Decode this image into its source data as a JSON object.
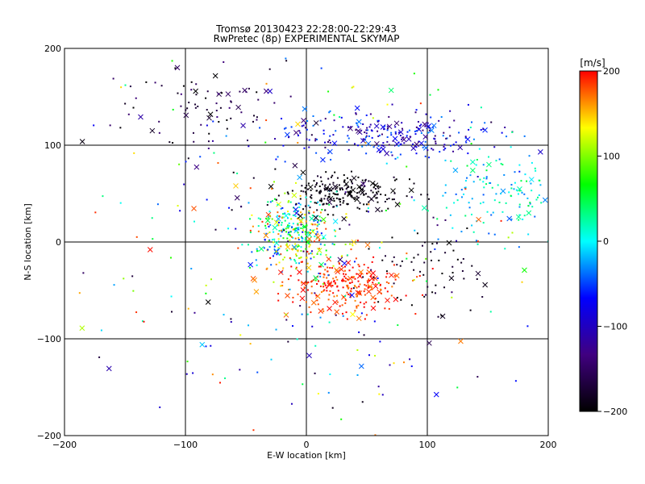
{
  "chart_data": {
    "type": "scatter",
    "title": "Tromsø 20130423 22:28:00-22:29:43",
    "subtitle": "RwPretec (8p) EXPERIMENTAL SKYMAP",
    "xlabel": "E-W location [km]",
    "ylabel": "N-S location [km]",
    "xlim": [
      -200,
      200
    ],
    "ylim": [
      -200,
      200
    ],
    "xticks": [
      -200,
      -100,
      0,
      100,
      200
    ],
    "yticks": [
      -200,
      -100,
      0,
      100,
      200
    ],
    "xtick_labels": [
      "−200",
      "−100",
      "0",
      "100",
      "200"
    ],
    "ytick_labels": [
      "−200",
      "−100",
      "0",
      "100",
      "200"
    ],
    "grid": true,
    "colorbar": {
      "label": "[m/s]",
      "min": -200,
      "max": 200,
      "ticks": [
        200,
        100,
        0,
        -100,
        -200
      ],
      "tick_labels": [
        "200",
        "100",
        "0",
        "−100",
        "−200"
      ],
      "colors": [
        "#ff0000",
        "#ffff00",
        "#00ff00",
        "#00ffff",
        "#0000ff",
        "#400080",
        "#000000"
      ]
    },
    "clusters": [
      {
        "cx": -10,
        "cy": 10,
        "sx": 18,
        "sy": 18,
        "n": 300,
        "v": 60,
        "dv": 130
      },
      {
        "cx": 30,
        "cy": -45,
        "sx": 25,
        "sy": 15,
        "n": 260,
        "v": 190,
        "dv": 25
      },
      {
        "cx": 30,
        "cy": 50,
        "sx": 25,
        "sy": 10,
        "n": 220,
        "v": -195,
        "dv": 20
      },
      {
        "cx": 60,
        "cy": 110,
        "sx": 45,
        "sy": 12,
        "n": 240,
        "v": -90,
        "dv": 60
      },
      {
        "cx": 160,
        "cy": 50,
        "sx": 25,
        "sy": 25,
        "n": 140,
        "v": 5,
        "dv": 50
      },
      {
        "cx": 100,
        "cy": -30,
        "sx": 25,
        "sy": 20,
        "n": 60,
        "v": -190,
        "dv": 20
      },
      {
        "cx": -80,
        "cy": 140,
        "sx": 35,
        "sy": 20,
        "n": 80,
        "v": -170,
        "dv": 40
      },
      {
        "cx": 0,
        "cy": 0,
        "sx": 120,
        "sy": 110,
        "n": 320,
        "v": 0,
        "dv": 200
      }
    ]
  }
}
